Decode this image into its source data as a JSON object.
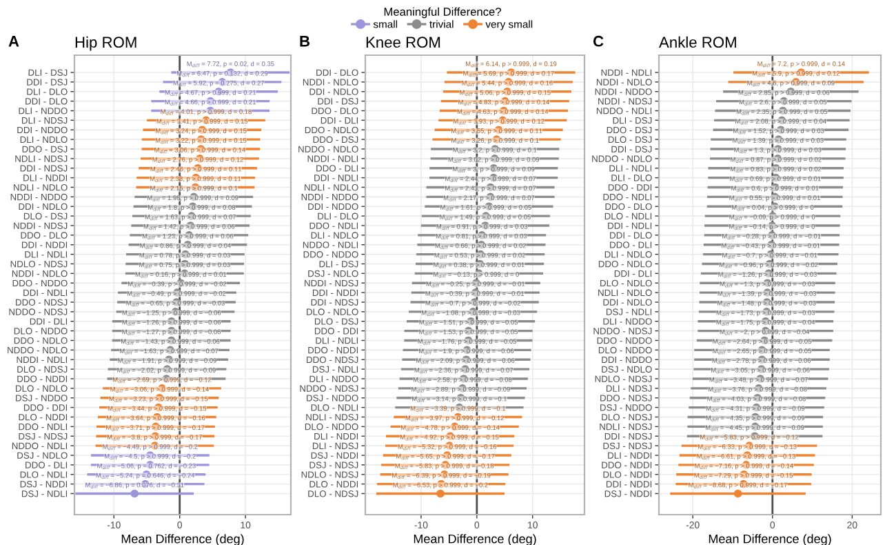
{
  "chart_data": [
    {
      "type": "scatter",
      "orientation": "horizontal",
      "title": "Hip ROM",
      "xlabel": "Mean Difference (deg)",
      "annotations": [
        "A"
      ],
      "legend_title": "Meaningful Difference?",
      "legend": "top",
      "grid": true,
      "marker": "circle",
      "xlim": [
        -16,
        16.9
      ],
      "xticks": [
        -10,
        0,
        10
      ],
      "ref_lines": [
        {
          "axis": "x",
          "value": 0,
          "color": "#4d4d4d"
        }
      ],
      "categories": [
        "DLI - DSJ",
        "DDI - DSJ",
        "DLI - DLO",
        "DDI - DLO",
        "DLI - NDDO",
        "DLI - NDSJ",
        "DDI - NDDO",
        "DLI - NDLO",
        "DDO - DSJ",
        "NDLI - NDSJ",
        "DDI - NDSJ",
        "DLI - NDDI",
        "NDLI - NDLO",
        "NDDI - NDDO",
        "DDI - NDLO",
        "DLO - DSJ",
        "NDDI - NDSJ",
        "DDO - DLO",
        "DDI - NDDI",
        "DLI - NDLI",
        "NDLO - NDSJ",
        "NDDI - NDLO",
        "DDO - NDDO",
        "DDI - NDLI",
        "DDO - NDSJ",
        "NDDO - NDSJ",
        "DDI - DLI",
        "DLO - NDDO",
        "DDO - NDLO",
        "NDDO - NDLO",
        "NDDI - NDLI",
        "DLO - NDSJ",
        "DDO - NDDI",
        "DLO - NDLO",
        "DSJ - NDDO",
        "DDO - DDI",
        "DLO - NDDI",
        "DDO - NDLI",
        "DSJ - NDSJ",
        "NDDO - NDLI",
        "DSJ - NDLO",
        "DDO - DLI",
        "DLO - NDLI",
        "DSJ - NDDI",
        "DSJ - NDLI"
      ],
      "series": [
        {
          "name": "small",
          "color": "#9d95dc",
          "values": [
            7.72,
            6.47,
            5.92,
            4.67,
            4.66,
            null,
            null,
            null,
            null,
            null,
            null,
            null,
            null,
            null,
            null,
            null,
            null,
            null,
            null,
            null,
            null,
            null,
            null,
            null,
            null,
            null,
            null,
            null,
            null,
            null,
            null,
            null,
            null,
            null,
            null,
            null,
            null,
            null,
            null,
            null,
            -4.49,
            -4.5,
            -5.06,
            -5.24,
            -6.86
          ],
          "errors": [
            9,
            9,
            9,
            9,
            9,
            null,
            null,
            null,
            null,
            null,
            null,
            null,
            null,
            null,
            null,
            null,
            null,
            null,
            null,
            null,
            null,
            null,
            null,
            null,
            null,
            null,
            null,
            null,
            null,
            null,
            null,
            null,
            null,
            null,
            null,
            null,
            null,
            null,
            null,
            null,
            9,
            9,
            9,
            9,
            9
          ],
          "value_labels": [
            "M$_{diff}$ = 7.72, p = 0.02, d = 0.35",
            "M$_{diff}$ = 6.47, p = 0.132, d = 0.29",
            "M$_{diff}$ = 5.92, p = 0.275, d = 0.27",
            "M$_{diff}$ = 4.67, p > 0.999, d = 0.21",
            "M$_{diff}$ = 4.66, p > 0.999, d = 0.21",
            null,
            null,
            null,
            null,
            null,
            null,
            null,
            null,
            null,
            null,
            null,
            null,
            null,
            null,
            null,
            null,
            null,
            null,
            null,
            null,
            null,
            null,
            null,
            null,
            null,
            null,
            null,
            null,
            null,
            null,
            null,
            null,
            null,
            null,
            null,
            "M$_{diff}$ = −4.49, p > 0.999, d = −0.2",
            "M$_{diff}$ = −4.5, p > 0.999, d = −0.2",
            "M$_{diff}$ = −5.06, p = 0.762, d = −0.23",
            "M$_{diff}$ = −5.24, p = 0.646, d = −0.24",
            "M$_{diff}$ = −6.86, p = 0.076, d = −0.31"
          ]
        },
        {
          "name": "trivial",
          "color": "#8c8c8c",
          "values": [
            null,
            null,
            null,
            null,
            null,
            null,
            null,
            null,
            null,
            null,
            null,
            null,
            null,
            2.15,
            1.98,
            1.8,
            1.63,
            1.42,
            1.23,
            0.86,
            0.78,
            0.75,
            0.16,
            -0.39,
            -0.49,
            -0.65,
            -1.25,
            -1.26,
            -1.27,
            -1.43,
            -1.63,
            -1.91,
            -2.02,
            null,
            null,
            null,
            null,
            null,
            null,
            null,
            null,
            null,
            null,
            null,
            null
          ],
          "errors": [
            null,
            null,
            null,
            null,
            null,
            null,
            null,
            null,
            null,
            null,
            null,
            null,
            null,
            9,
            9,
            9,
            9,
            9,
            9,
            9,
            9,
            9,
            9,
            9,
            9,
            9,
            9,
            9,
            9,
            9,
            9,
            9,
            9,
            null,
            null,
            null,
            null,
            null,
            null,
            null,
            null,
            null,
            null,
            null,
            null
          ],
          "value_labels": [
            null,
            null,
            null,
            null,
            null,
            null,
            null,
            null,
            null,
            null,
            null,
            null,
            null,
            "M$_{diff}$ = 2.15, p > 0.999, d = 0.1",
            "M$_{diff}$ = 1.98, p > 0.999, d = 0.09",
            "M$_{diff}$ = 1.8, p > 0.999, d = 0.08",
            "M$_{diff}$ = 1.63, p > 0.999, d = 0.07",
            "M$_{diff}$ = 1.42, p > 0.999, d = 0.06",
            "M$_{diff}$ = 1.23, p > 0.999, d = 0.06",
            "M$_{diff}$ = 0.86, p > 0.999, d = 0.04",
            "M$_{diff}$ = 0.78, p > 0.999, d = 0.03",
            "M$_{diff}$ = 0.75, p > 0.999, d = 0.03",
            "M$_{diff}$ = 0.16, p > 0.999, d = 0.01",
            "M$_{diff}$ = −0.39, p > 0.999, d = −0.02",
            "M$_{diff}$ = −0.49, p > 0.999, d = −0.02",
            "M$_{diff}$ = −0.65, p > 0.999, d = −0.03",
            "M$_{diff}$ = −1.25, p > 0.999, d = −0.06",
            "M$_{diff}$ = −1.26, p > 0.999, d = −0.06",
            "M$_{diff}$ = −1.27, p > 0.999, d = −0.06",
            "M$_{diff}$ = −1.43, p > 0.999, d = −0.06",
            "M$_{diff}$ = −1.63, p > 0.999, d = −0.07",
            "M$_{diff}$ = −1.91, p > 0.999, d = −0.09",
            "M$_{diff}$ = −2.02, p > 0.999, d = −0.09",
            null,
            null,
            null,
            null,
            null,
            null,
            null,
            null,
            null,
            null,
            null,
            null
          ]
        },
        {
          "name": "very small",
          "color": "#ee8432",
          "values": [
            null,
            null,
            null,
            null,
            null,
            4.01,
            3.41,
            3.24,
            3.22,
            3.06,
            2.76,
            2.46,
            2.38,
            null,
            null,
            null,
            null,
            null,
            null,
            null,
            null,
            null,
            null,
            null,
            null,
            null,
            null,
            null,
            null,
            null,
            null,
            null,
            null,
            -2.69,
            -3.06,
            -3.23,
            -3.44,
            -3.64,
            -3.71,
            -3.8,
            null,
            null,
            null,
            null,
            null
          ],
          "errors": [
            null,
            null,
            null,
            null,
            null,
            9,
            9,
            9,
            9,
            9,
            9,
            9,
            9,
            null,
            null,
            null,
            null,
            null,
            null,
            null,
            null,
            null,
            null,
            null,
            null,
            null,
            null,
            null,
            null,
            null,
            null,
            null,
            null,
            9,
            9,
            9,
            9,
            9,
            9,
            9,
            null,
            null,
            null,
            null,
            null
          ],
          "value_labels": [
            null,
            null,
            null,
            null,
            null,
            "M$_{diff}$ = 4.01, p > 0.999, d = 0.18",
            "M$_{diff}$ = 3.41, p > 0.999, d = 0.15",
            "M$_{diff}$ = 3.24, p > 0.999, d = 0.15",
            "M$_{diff}$ = 3.22, p > 0.999, d = 0.15",
            "M$_{diff}$ = 3.06, p > 0.999, d = 0.14",
            "M$_{diff}$ = 2.76, p > 0.999, d = 0.12",
            "M$_{diff}$ = 2.46, p > 0.999, d = 0.11",
            "M$_{diff}$ = 2.38, p > 0.999, d = 0.11",
            null,
            null,
            null,
            null,
            null,
            null,
            null,
            null,
            null,
            null,
            null,
            null,
            null,
            null,
            null,
            null,
            null,
            null,
            null,
            null,
            "M$_{diff}$ = −2.69, p > 0.999, d = −0.12",
            "M$_{diff}$ = −3.06, p > 0.999, d = −0.14",
            "M$_{diff}$ = −3.23, p > 0.999, d = −0.15",
            "M$_{diff}$ = −3.44, p > 0.999, d = −0.15",
            "M$_{diff}$ = −3.64, p > 0.999, d = −0.16",
            "M$_{diff}$ = −3.71, p > 0.999, d = −0.17",
            "M$_{diff}$ = −3.8, p > 0.999, d = −0.17",
            null,
            null,
            null,
            null,
            null
          ]
        }
      ]
    },
    {
      "type": "scatter",
      "orientation": "horizontal",
      "title": "Knee ROM",
      "xlabel": "Mean Difference (deg)",
      "annotations": [
        "B"
      ],
      "grid": true,
      "marker": "circle",
      "xlim": [
        -20,
        19.3
      ],
      "xticks": [
        -10,
        0,
        10
      ],
      "ref_lines": [
        {
          "axis": "x",
          "value": 0,
          "color": "#4d4d4d"
        }
      ],
      "categories": [
        "DDI - DLO",
        "NDDI - NDLO",
        "DDI - NDLO",
        "DDI - DSJ",
        "DDO - DLO",
        "DDI - DLI",
        "DDO - NDLO",
        "DDO - DSJ",
        "NDDO - NDLO",
        "NDDI - NDLI",
        "DDO - DLI",
        "DDI - NDLI",
        "NDLI - NDLO",
        "NDDI - NDDO",
        "DDI - NDDO",
        "DLI - DLO",
        "DDO - NDLI",
        "DLI - NDLO",
        "NDDO - NDLI",
        "DDO - NDDO",
        "DLI - DSJ",
        "DSJ - NDLO",
        "NDDI - NDSJ",
        "DDI - NDDI",
        "DDI - NDSJ",
        "DLO - NDLO",
        "DLO - DSJ",
        "DDO - DDI",
        "DLI - NDLI",
        "DDO - NDDI",
        "DDO - NDSJ",
        "DSJ - NDLI",
        "DLI - NDDO",
        "NDDO - NDSJ",
        "DSJ - NDDO",
        "DLO - NDLI",
        "NDLI - NDSJ",
        "DLO - NDDO",
        "DLI - NDDI",
        "DLI - NDSJ",
        "DSJ - NDDI",
        "DSJ - NDSJ",
        "NDLO - NDSJ",
        "DLO - NDDI",
        "DLO - NDSJ"
      ],
      "series": [
        {
          "color": "#8c8c8c",
          "values": [
            null,
            null,
            null,
            null,
            null,
            null,
            null,
            null,
            3.26,
            3.2,
            3.02,
            3,
            2.44,
            2.43,
            2.17,
            1.61,
            1.49,
            0.91,
            0.81,
            0.66,
            0.53,
            0.38,
            -0.13,
            -0.25,
            -0.39,
            -0.7,
            -1.08,
            -1.51,
            -1.53,
            -1.76,
            -1.9,
            -2.09,
            -2.36,
            -2.58,
            -2.89,
            -3.14,
            null,
            null,
            null,
            null,
            null,
            null,
            null,
            null,
            null
          ],
          "errors": [
            null,
            null,
            null,
            null,
            null,
            null,
            null,
            null,
            11.5,
            11.5,
            11.5,
            11.5,
            11.5,
            11.5,
            11.5,
            11.5,
            11.5,
            11.5,
            11.5,
            11.5,
            11.5,
            11.5,
            11.5,
            11.5,
            11.5,
            11.5,
            11.5,
            11.5,
            11.5,
            11.5,
            11.5,
            11.5,
            11.5,
            11.5,
            11.5,
            11.5,
            null,
            null,
            null,
            null,
            null,
            null,
            null,
            null,
            null
          ],
          "value_labels": [
            null,
            null,
            null,
            null,
            null,
            null,
            null,
            null,
            "M$_{diff}$ = 3.26, p > 0.999, d = 0.1",
            "M$_{diff}$ = 3.2, p > 0.999, d = 0.1",
            "M$_{diff}$ = 3.02, p > 0.999, d = 0.09",
            "M$_{diff}$ = 3, p > 0.999, d = 0.09",
            "M$_{diff}$ = 2.44, p > 0.999, d = 0.07",
            "M$_{diff}$ = 2.43, p > 0.999, d = 0.07",
            "M$_{diff}$ = 2.17, p > 0.999, d = 0.07",
            "M$_{diff}$ = 1.61, p > 0.999, d = 0.05",
            "M$_{diff}$ = 1.49, p > 0.999, d = 0.05",
            "M$_{diff}$ = 0.91, p > 0.999, d = 0.03",
            "M$_{diff}$ = 0.81, p > 0.999, d = 0.03",
            "M$_{diff}$ = 0.66, p > 0.999, d = 0.02",
            "M$_{diff}$ = 0.53, p > 0.999, d = 0.02",
            "M$_{diff}$ = 0.38, p > 0.999, d = 0.01",
            "M$_{diff}$ = −0.13, p > 0.999, d = 0",
            "M$_{diff}$ = −0.25, p > 0.999, d = −0.01",
            "M$_{diff}$ = −0.39, p > 0.999, d = −0.01",
            "M$_{diff}$ = −0.7, p > 0.999, d = −0.02",
            "M$_{diff}$ = −1.08, p > 0.999, d = −0.03",
            "M$_{diff}$ = −1.51, p > 0.999, d = −0.05",
            "M$_{diff}$ = −1.53, p > 0.999, d = −0.05",
            "M$_{diff}$ = −1.76, p > 0.999, d = −0.05",
            "M$_{diff}$ = −1.9, p > 0.999, d = −0.06",
            "M$_{diff}$ = −2.09, p > 0.999, d = −0.06",
            "M$_{diff}$ = −2.36, p > 0.999, d = −0.07",
            "M$_{diff}$ = −2.58, p > 0.999, d = −0.08",
            "M$_{diff}$ = −2.89, p > 0.999, d = −0.09",
            "M$_{diff}$ = −3.14, p > 0.999, d = −0.1",
            null,
            null,
            null,
            null,
            null,
            null,
            null,
            null,
            null
          ]
        },
        {
          "color": "#ee8432",
          "values": [
            6.14,
            5.69,
            5.44,
            5.06,
            4.83,
            4.63,
            3.93,
            3.55,
            null,
            null,
            null,
            null,
            null,
            null,
            null,
            null,
            null,
            null,
            null,
            null,
            null,
            null,
            null,
            null,
            null,
            null,
            null,
            null,
            null,
            null,
            null,
            null,
            null,
            null,
            null,
            null,
            -3.39,
            -3.97,
            -4.78,
            -4.92,
            -5.32,
            -5.65,
            -5.83,
            -6.39,
            -6.53
          ],
          "errors": [
            11.5,
            11.5,
            11.5,
            11.5,
            11.5,
            11.5,
            11.5,
            11.5,
            null,
            null,
            null,
            null,
            null,
            null,
            null,
            null,
            null,
            null,
            null,
            null,
            null,
            null,
            null,
            null,
            null,
            null,
            null,
            null,
            null,
            null,
            null,
            null,
            null,
            null,
            null,
            null,
            11.5,
            11.5,
            11.5,
            11.5,
            11.5,
            11.5,
            11.5,
            11.5,
            11.5
          ],
          "value_labels": [
            "M$_{diff}$ = 6.14, p > 0.999, d = 0.19",
            "M$_{diff}$ = 5.69, p > 0.999, d = 0.17",
            "M$_{diff}$ = 5.44, p > 0.999, d = 0.16",
            "M$_{diff}$ = 5.06, p > 0.999, d = 0.15",
            "M$_{diff}$ = 4.83, p > 0.999, d = 0.14",
            "M$_{diff}$ = 4.63, p > 0.999, d = 0.14",
            "M$_{diff}$ = 3.93, p > 0.999, d = 0.12",
            "M$_{diff}$ = 3.55, p > 0.999, d = 0.11",
            null,
            null,
            null,
            null,
            null,
            null,
            null,
            null,
            null,
            null,
            null,
            null,
            null,
            null,
            null,
            null,
            null,
            null,
            null,
            null,
            null,
            null,
            null,
            null,
            null,
            null,
            null,
            null,
            "M$_{diff}$ = −3.39, p > 0.999, d = −0.1",
            "M$_{diff}$ = −3.97, p > 0.999, d = −0.12",
            "M$_{diff}$ = −4.78, p > 0.999, d = −0.14",
            "M$_{diff}$ = −4.92, p > 0.999, d = −0.15",
            "M$_{diff}$ = −5.32, p > 0.999, d = −0.16",
            "M$_{diff}$ = −5.65, p > 0.999, d = −0.17",
            "M$_{diff}$ = −5.83, p > 0.999, d = −0.18",
            "M$_{diff}$ = −6.39, p > 0.999, d = −0.19",
            "M$_{diff}$ = −6.53, p > 0.999, d = −0.2"
          ]
        }
      ]
    },
    {
      "type": "scatter",
      "orientation": "horizontal",
      "title": "Ankle ROM",
      "xlabel": "Mean Difference (deg)",
      "annotations": [
        "C"
      ],
      "grid": true,
      "marker": "circle",
      "xlim": [
        -28.5,
        27.2
      ],
      "xticks": [
        -20,
        0,
        20
      ],
      "ref_lines": [
        {
          "axis": "x",
          "value": 0,
          "color": "#4d4d4d"
        }
      ],
      "categories": [
        "NDDI - NDLI",
        "NDDI - NDLO",
        "NDDI - NDDO",
        "NDDI - NDSJ",
        "NDDO - NDLI",
        "DLI - DSJ",
        "DDO - DSJ",
        "DLO - DSJ",
        "DDI - DSJ",
        "NDDO - NDLO",
        "DLI - NDLI",
        "DLI - DLO",
        "DDO - DDI",
        "DDO - NDLI",
        "DDO - DLO",
        "DLO - NDLI",
        "DDI - NDLI",
        "DDI - DLO",
        "DDO - DLI",
        "DLI - NDLO",
        "DDO - NDLO",
        "DDI - DLI",
        "DLO - NDLO",
        "NDLI - NDLO",
        "DDI - NDLO",
        "DSJ - NDLI",
        "DLI - NDDO",
        "NDDO - NDSJ",
        "DDO - NDDO",
        "DLO - NDDO",
        "DDI - NDDO",
        "DSJ - NDLO",
        "NDLO - NDSJ",
        "DLI - NDSJ",
        "DDO - NDSJ",
        "DSJ - NDDO",
        "DLO - NDSJ",
        "NDLI - NDSJ",
        "DDI - NDSJ",
        "DSJ - NDSJ",
        "DLI - NDDI",
        "DDO - NDDI",
        "DLO - NDDI",
        "DDI - NDDI",
        "DSJ - NDDI"
      ],
      "series": [
        {
          "color": "#8c8c8c",
          "values": [
            null,
            null,
            4.6,
            2.85,
            2.6,
            2.35,
            2.08,
            1.52,
            1.39,
            1.3,
            0.87,
            0.83,
            0.69,
            0.6,
            0.55,
            0.04,
            -0.09,
            -0.14,
            -0.28,
            -0.43,
            -0.7,
            -0.96,
            -1.26,
            -1.3,
            -1.39,
            -1.48,
            -1.73,
            -1.75,
            -2,
            -2.64,
            -2.65,
            -2.78,
            -3.05,
            -3.48,
            -3.76,
            -4.03,
            -4.31,
            -4.35,
            -4.45,
            null,
            null,
            null,
            null,
            null,
            null
          ],
          "errors": [
            null,
            null,
            17,
            17,
            17,
            17,
            17,
            17,
            17,
            17,
            17,
            17,
            17,
            17,
            17,
            17,
            17,
            17,
            17,
            17,
            17,
            17,
            17,
            17,
            17,
            17,
            17,
            17,
            17,
            17,
            17,
            17,
            17,
            17,
            17,
            17,
            17,
            17,
            17,
            null,
            null,
            null,
            null,
            null,
            null
          ],
          "value_labels": [
            null,
            null,
            "M$_{diff}$ = 4.6, p > 0.999, d = 0.09",
            "M$_{diff}$ = 2.85, p > 0.999, d = 0.06",
            "M$_{diff}$ = 2.6, p > 0.999, d = 0.05",
            "M$_{diff}$ = 2.35, p > 0.999, d = 0.05",
            "M$_{diff}$ = 2.08, p > 0.999, d = 0.04",
            "M$_{diff}$ = 1.52, p > 0.999, d = 0.03",
            "M$_{diff}$ = 1.39, p > 0.999, d = 0.03",
            "M$_{diff}$ = 1.3, p > 0.999, d = 0.03",
            "M$_{diff}$ = 0.87, p > 0.999, d = 0.02",
            "M$_{diff}$ = 0.83, p > 0.999, d = 0.02",
            "M$_{diff}$ = 0.69, p > 0.999, d = 0.01",
            "M$_{diff}$ = 0.6, p > 0.999, d = 0.01",
            "M$_{diff}$ = 0.55, p > 0.999, d = 0.01",
            "M$_{diff}$ = 0.04, p > 0.999, d = 0",
            "M$_{diff}$ = −0.09, p > 0.999, d = 0",
            "M$_{diff}$ = −0.14, p > 0.999, d = 0",
            "M$_{diff}$ = −0.28, p > 0.999, d = −0.01",
            "M$_{diff}$ = −0.43, p > 0.999, d = −0.01",
            "M$_{diff}$ = −0.7, p > 0.999, d = −0.01",
            "M$_{diff}$ = −0.96, p > 0.999, d = −0.02",
            "M$_{diff}$ = −1.26, p > 0.999, d = −0.03",
            "M$_{diff}$ = −1.3, p > 0.999, d = −0.03",
            "M$_{diff}$ = −1.39, p > 0.999, d = −0.03",
            "M$_{diff}$ = −1.48, p > 0.999, d = −0.03",
            "M$_{diff}$ = −1.73, p > 0.999, d = −0.03",
            "M$_{diff}$ = −1.75, p > 0.999, d = −0.04",
            "M$_{diff}$ = −2, p > 0.999, d = −0.04",
            "M$_{diff}$ = −2.64, p > 0.999, d = −0.05",
            "M$_{diff}$ = −2.65, p > 0.999, d = −0.05",
            "M$_{diff}$ = −2.78, p > 0.999, d = −0.06",
            "M$_{diff}$ = −3.05, p > 0.999, d = −0.06",
            "M$_{diff}$ = −3.48, p > 0.999, d = −0.07",
            "M$_{diff}$ = −3.76, p > 0.999, d = −0.08",
            "M$_{diff}$ = −4.03, p > 0.999, d = −0.08",
            "M$_{diff}$ = −4.31, p > 0.999, d = −0.09",
            "M$_{diff}$ = −4.35, p > 0.999, d = −0.09",
            "M$_{diff}$ = −4.45, p > 0.999, d = −0.09",
            null,
            null,
            null,
            null,
            null,
            null
          ]
        },
        {
          "color": "#ee8432",
          "values": [
            7.2,
            5.9,
            null,
            null,
            null,
            null,
            null,
            null,
            null,
            null,
            null,
            null,
            null,
            null,
            null,
            null,
            null,
            null,
            null,
            null,
            null,
            null,
            null,
            null,
            null,
            null,
            null,
            null,
            null,
            null,
            null,
            null,
            null,
            null,
            null,
            null,
            null,
            null,
            null,
            -5.83,
            -6.33,
            -6.61,
            -7.16,
            -7.29,
            -8.68
          ],
          "errors": [
            17,
            17,
            null,
            null,
            null,
            null,
            null,
            null,
            null,
            null,
            null,
            null,
            null,
            null,
            null,
            null,
            null,
            null,
            null,
            null,
            null,
            null,
            null,
            null,
            null,
            null,
            null,
            null,
            null,
            null,
            null,
            null,
            null,
            null,
            null,
            null,
            null,
            null,
            null,
            17,
            17,
            17,
            17,
            17,
            17
          ],
          "value_labels": [
            "M$_{diff}$ = 7.2, p > 0.999, d = 0.14",
            "M$_{diff}$ = 5.9, p > 0.999, d = 0.12",
            null,
            null,
            null,
            null,
            null,
            null,
            null,
            null,
            null,
            null,
            null,
            null,
            null,
            null,
            null,
            null,
            null,
            null,
            null,
            null,
            null,
            null,
            null,
            null,
            null,
            null,
            null,
            null,
            null,
            null,
            null,
            null,
            null,
            null,
            null,
            null,
            null,
            "M$_{diff}$ = −5.83, p > 0.999, d = −0.12",
            "M$_{diff}$ = −6.33, p > 0.999, d = −0.13",
            "M$_{diff}$ = −6.61, p > 0.999, d = −0.13",
            "M$_{diff}$ = −7.16, p > 0.999, d = −0.14",
            "M$_{diff}$ = −7.29, p > 0.999, d = −0.15",
            "M$_{diff}$ = −8.68, p > 0.999, d = −0.17"
          ]
        }
      ]
    }
  ]
}
